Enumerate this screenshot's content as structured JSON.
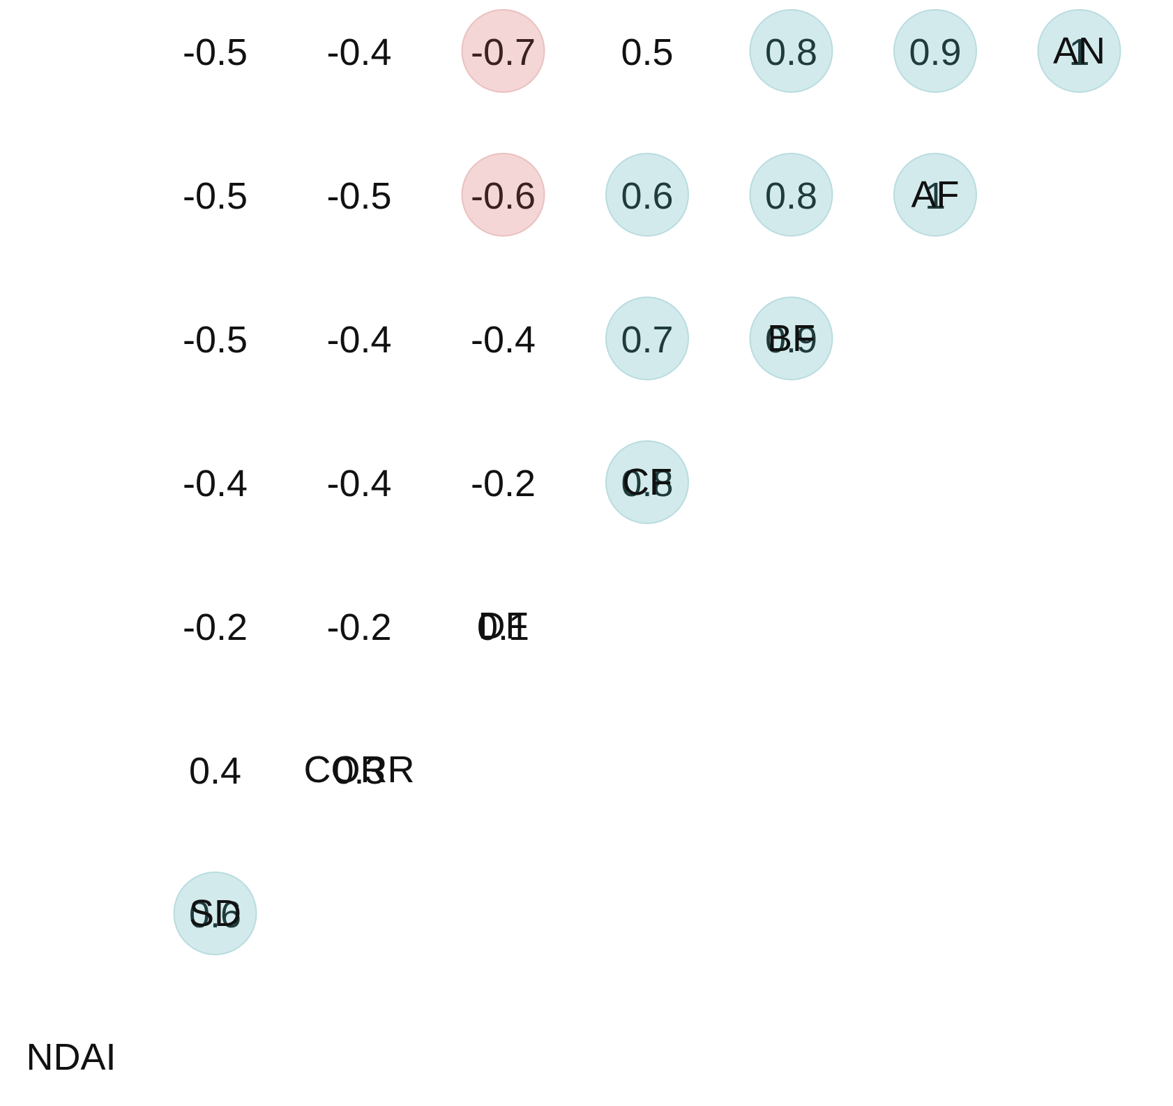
{
  "chart_data": {
    "type": "heatmap",
    "variables": [
      "NDAI",
      "SD",
      "CORR",
      "DF",
      "CF",
      "BF",
      "AF",
      "AN"
    ],
    "matrix_lower": [
      [],
      [
        0.6
      ],
      [
        0.4,
        0.3
      ],
      [
        -0.2,
        -0.2,
        0.1
      ],
      [
        -0.4,
        -0.4,
        -0.2,
        0.8
      ],
      [
        -0.5,
        -0.4,
        -0.4,
        0.7,
        0.9
      ],
      [
        -0.5,
        -0.5,
        -0.6,
        0.6,
        0.8,
        1
      ],
      [
        -0.5,
        -0.4,
        -0.7,
        0.5,
        0.8,
        0.9,
        1
      ]
    ],
    "highlight_threshold": 0.6,
    "colors": {
      "positive_fill": "#d3eaec",
      "positive_stroke": "#b9dcdf",
      "negative_fill": "#f4d6d6",
      "negative_stroke": "#ebc0c0"
    }
  }
}
